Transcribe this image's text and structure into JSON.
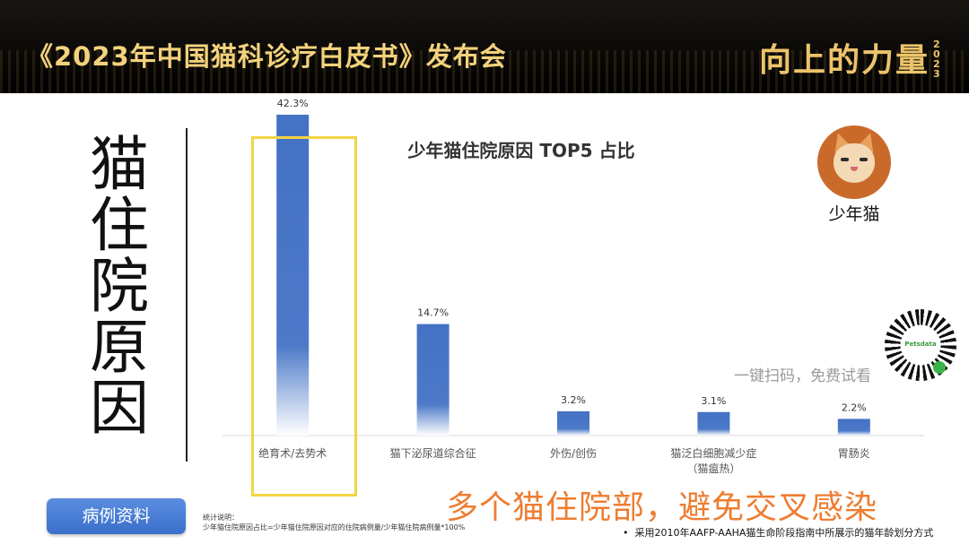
{
  "header": {
    "title": "《2023年中国猫科诊疗白皮书》发布会",
    "brand": "向上的力量",
    "brand_year": "2023"
  },
  "side_title": "猫住院原因",
  "badge": {
    "icon": "cat-face-icon",
    "label": "少年猫"
  },
  "qr": {
    "brand_text": "Petsdata",
    "caption": "一键扫码，免费试看"
  },
  "footer": {
    "button_label": "病例资料",
    "note_line1": "统计说明：",
    "note_line2": "少年猫住院原因占比=少年猫住院原因对应的住院病例量/少年猫住院病例量*100%",
    "highlight_text": "多个猫住院部，避免交叉感染",
    "bullet_note": "采用2010年AAFP-AAHA猫生命阶段指南中所展示的猫年龄划分方式"
  },
  "colors": {
    "bar": "#4472c4",
    "highlight_box": "#f3d444",
    "highlight_text": "#ed7d31",
    "banner_gold": "#f2d27c"
  },
  "chart_data": {
    "type": "bar",
    "title": "少年猫住院原因 TOP5 占比",
    "categories": [
      "绝育术/去势术",
      "猫下泌尿道综合征",
      "外伤/创伤",
      "猫泛白细胞减少症\n（猫瘟热）",
      "胃肠炎"
    ],
    "values": [
      42.3,
      14.7,
      3.2,
      3.1,
      2.2
    ],
    "value_labels": [
      "42.3%",
      "14.7%",
      "3.2%",
      "3.1%",
      "2.2%"
    ],
    "ylim": [
      0,
      50
    ],
    "grid": false,
    "highlighted_category": "绝育术/去势术"
  }
}
